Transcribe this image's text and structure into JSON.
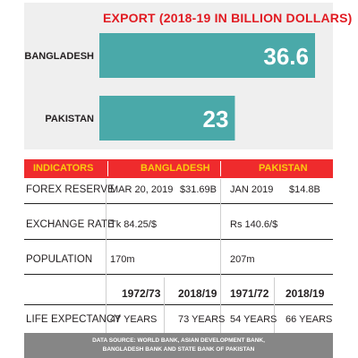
{
  "chart_data": {
    "type": "bar",
    "orientation": "horizontal",
    "title": "EXPORT (2018-19 IN BILLION DOLLARS)",
    "categories": [
      "BANGLADESH",
      "PAKISTAN"
    ],
    "values": [
      36.6,
      23
    ],
    "value_labels": [
      "36.6",
      "23"
    ],
    "bar_color": "#4aa9a9",
    "xlim": [
      0,
      36.6
    ]
  },
  "table": {
    "header": {
      "indicators": "INDICATORS",
      "bangladesh": "BANGLADESH",
      "pakistan": "PAKISTAN"
    },
    "header_bg": "#ef2b2d",
    "header_text_color": "#fbcc0e",
    "rows": [
      {
        "label": "FOREX RESERVE",
        "bd_date": "MAR 20, 2019",
        "bd_value": "$31.69B",
        "pk_date": "JAN 2019",
        "pk_value": "$14.8B"
      },
      {
        "label": "EXCHANGE RATE",
        "bd_value": "Tk 84.25/$",
        "pk_value": "Rs 140.6/$"
      },
      {
        "label": "POPULATION",
        "bd_value": "170m",
        "pk_value": "207m"
      }
    ],
    "life": {
      "years": [
        "1972/73",
        "2018/19",
        "1971/72",
        "2018/19"
      ],
      "label": "LIFE EXPECTANCY",
      "values": [
        "47 YEARS",
        "73 YEARS",
        "54 YEARS",
        "66 YEARS"
      ]
    }
  },
  "footer": {
    "line1": "DATA SOURCE: WORLD BANK, ASIAN DEVELOPMENT BANK,",
    "line2": "BANGLADESH BANK AND STATE BANK OF PAKISTAN"
  }
}
